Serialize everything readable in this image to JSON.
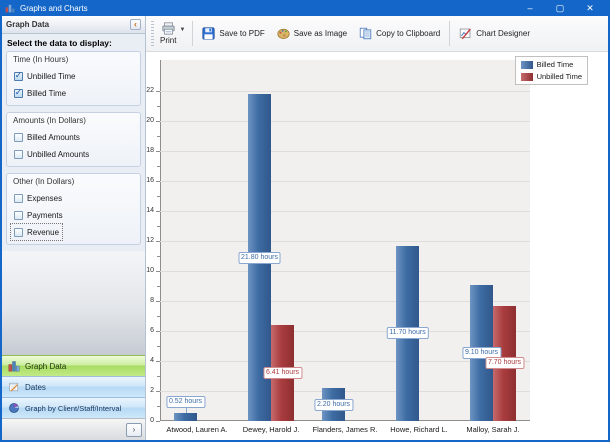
{
  "colors": {
    "accent_blue": "#1467c8",
    "bar_billed": "#3d6ca3",
    "bar_unbilled": "#a83c3e",
    "nav_selected_green": "#a8dc64"
  },
  "window": {
    "title": "Graphs and Charts",
    "minimize_glyph": "–",
    "maximize_glyph": "▢",
    "close_glyph": "✕"
  },
  "sidebar": {
    "header": {
      "title": "Graph Data",
      "collapse_glyph": "‹"
    },
    "prompt": "Select the data to display:",
    "groups": [
      {
        "label": "Time (In Hours)",
        "items": [
          {
            "label": "Unbilled Time",
            "checked": true
          },
          {
            "label": "Billed Time",
            "checked": true
          }
        ]
      },
      {
        "label": "Amounts (In Dollars)",
        "items": [
          {
            "label": "Billed Amounts",
            "checked": false
          },
          {
            "label": "Unbilled Amounts",
            "checked": false
          }
        ]
      },
      {
        "label": "Other (In Dollars)",
        "items": [
          {
            "label": "Expenses",
            "checked": false
          },
          {
            "label": "Payments",
            "checked": false
          },
          {
            "label": "Revenue",
            "checked": false,
            "focused": true
          }
        ]
      }
    ],
    "nav": [
      {
        "label": "Graph Data",
        "icon": "bar-chart-icon",
        "selected": true
      },
      {
        "label": "Dates",
        "icon": "calendar-icon",
        "selected": false
      },
      {
        "label": "Graph by Client/Staff/Interval",
        "icon": "pie-chart-icon",
        "selected": false
      }
    ],
    "expand_glyph": "›"
  },
  "toolbar": {
    "print_label": "Print",
    "print_caret": "▼",
    "buttons": [
      {
        "label": "Save to PDF",
        "icon": "floppy-disk-icon"
      },
      {
        "label": "Save as Image",
        "icon": "palette-icon"
      },
      {
        "label": "Copy to Clipboard",
        "icon": "copy-pages-icon"
      },
      {
        "label": "Chart Designer",
        "icon": "chart-pencil-icon"
      }
    ]
  },
  "chart_data": {
    "type": "bar",
    "title": "",
    "categories": [
      "Atwood, Lauren A.",
      "Dewey, Harold J.",
      "Flanders, James R.",
      "Howe, Richard L.",
      "Malloy, Sarah J."
    ],
    "series": [
      {
        "name": "Billed Time",
        "color": "#3d6ca3",
        "values": [
          0.52,
          21.8,
          2.2,
          11.7,
          9.1
        ],
        "labels": [
          "0.52 hours",
          "21.80 hours",
          "2.20 hours",
          "11.70 hours",
          "9.10 hours"
        ]
      },
      {
        "name": "Unbilled Time",
        "color": "#a83c3e",
        "values": [
          0,
          6.41,
          0,
          0,
          7.7
        ],
        "labels": [
          "",
          "6.41 hours",
          "",
          "",
          "7.70 hours"
        ]
      }
    ],
    "ylim": [
      0,
      22
    ],
    "ytick_step": 2,
    "yminor_step": 1,
    "grid": true,
    "legend_position": "top-right"
  }
}
